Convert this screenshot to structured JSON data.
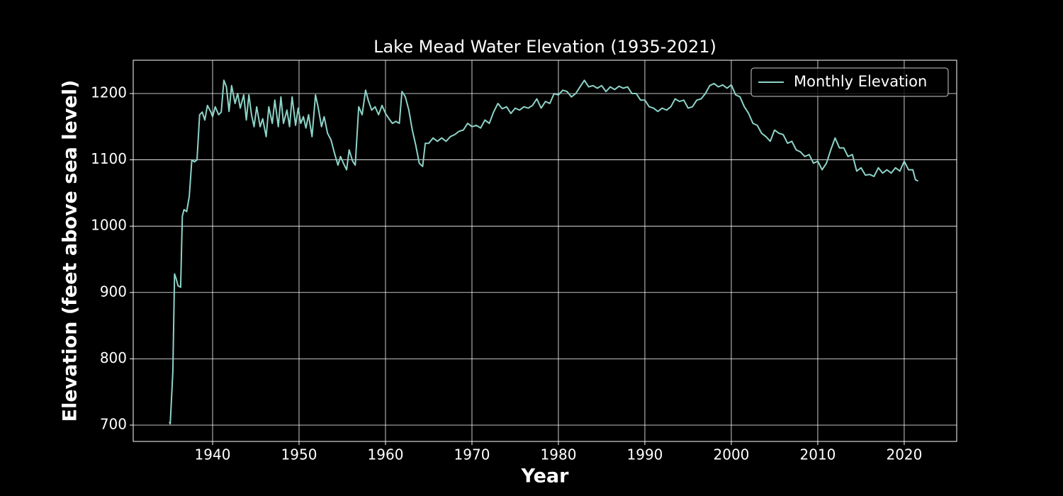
{
  "chart_data": {
    "type": "line",
    "title": "Lake Mead Water Elevation (1935-2021)",
    "xlabel": "Year",
    "ylabel": "Elevation (feet above sea level)",
    "xlim": [
      1930.82,
      2026.07
    ],
    "ylim": [
      675.4,
      1250.2
    ],
    "xticks": [
      1940,
      1950,
      1960,
      1970,
      1980,
      1990,
      2000,
      2010,
      2020
    ],
    "yticks": [
      700,
      800,
      900,
      1000,
      1100,
      1200
    ],
    "grid": true,
    "legend": "upper right",
    "x": [
      1935.0,
      1935.1,
      1935.4,
      1935.6,
      1935.8,
      1936.0,
      1936.3,
      1936.5,
      1936.7,
      1937.0,
      1937.3,
      1937.6,
      1937.9,
      1938.2,
      1938.5,
      1938.8,
      1939.1,
      1939.4,
      1939.8,
      1940.0,
      1940.3,
      1940.7,
      1941.0,
      1941.3,
      1941.6,
      1941.9,
      1942.2,
      1942.6,
      1942.9,
      1943.2,
      1943.6,
      1943.9,
      1944.2,
      1944.5,
      1944.8,
      1945.1,
      1945.5,
      1945.8,
      1946.2,
      1946.5,
      1946.9,
      1947.2,
      1947.6,
      1947.9,
      1948.2,
      1948.6,
      1948.9,
      1949.2,
      1949.6,
      1949.9,
      1950.2,
      1950.5,
      1950.8,
      1951.1,
      1951.5,
      1951.9,
      1952.2,
      1952.6,
      1952.9,
      1953.3,
      1953.7,
      1954.1,
      1954.5,
      1954.8,
      1955.2,
      1955.5,
      1955.8,
      1956.2,
      1956.5,
      1956.9,
      1957.3,
      1957.7,
      1958.0,
      1958.4,
      1958.8,
      1959.2,
      1959.6,
      1960.0,
      1960.4,
      1960.8,
      1961.2,
      1961.6,
      1961.9,
      1962.3,
      1962.7,
      1963.1,
      1963.5,
      1963.9,
      1964.3,
      1964.6,
      1965.0,
      1965.5,
      1966.0,
      1966.5,
      1967.0,
      1967.5,
      1968.0,
      1968.5,
      1969.0,
      1969.5,
      1970.0,
      1970.5,
      1971.0,
      1971.5,
      1972.0,
      1972.5,
      1973.0,
      1973.5,
      1974.0,
      1974.5,
      1975.0,
      1975.5,
      1976.0,
      1976.5,
      1977.0,
      1977.5,
      1978.0,
      1978.5,
      1979.0,
      1979.5,
      1980.0,
      1980.5,
      1981.0,
      1981.5,
      1982.0,
      1982.5,
      1983.0,
      1983.5,
      1984.0,
      1984.5,
      1985.0,
      1985.5,
      1986.0,
      1986.5,
      1987.0,
      1987.5,
      1988.0,
      1988.5,
      1989.0,
      1989.5,
      1990.0,
      1990.5,
      1991.0,
      1991.5,
      1992.0,
      1992.5,
      1993.0,
      1993.5,
      1994.0,
      1994.5,
      1995.0,
      1995.5,
      1996.0,
      1996.5,
      1997.0,
      1997.5,
      1998.0,
      1998.5,
      1999.0,
      1999.5,
      2000.0,
      2000.5,
      2001.0,
      2001.5,
      2002.0,
      2002.5,
      2003.0,
      2003.5,
      2004.0,
      2004.5,
      2005.0,
      2005.5,
      2006.0,
      2006.5,
      2007.0,
      2007.5,
      2008.0,
      2008.5,
      2009.0,
      2009.5,
      2010.0,
      2010.5,
      2011.0,
      2011.5,
      2012.0,
      2012.5,
      2013.0,
      2013.5,
      2014.0,
      2014.5,
      2015.0,
      2015.5,
      2016.0,
      2016.5,
      2017.0,
      2017.5,
      2018.0,
      2018.5,
      2019.0,
      2019.5,
      2020.0,
      2020.5,
      2021.0,
      2021.3,
      2021.6
    ],
    "series": [
      {
        "name": "Monthly Elevation",
        "color": "#8dd3c7",
        "values": [
          705,
          702,
          780,
          928,
          920,
          910,
          908,
          1015,
          1025,
          1022,
          1045,
          1100,
          1097,
          1100,
          1168,
          1172,
          1160,
          1182,
          1172,
          1165,
          1180,
          1168,
          1172,
          1220,
          1210,
          1173,
          1212,
          1185,
          1200,
          1178,
          1198,
          1160,
          1198,
          1168,
          1150,
          1180,
          1150,
          1162,
          1135,
          1180,
          1155,
          1190,
          1150,
          1195,
          1155,
          1175,
          1150,
          1195,
          1152,
          1178,
          1155,
          1165,
          1148,
          1168,
          1135,
          1198,
          1180,
          1150,
          1165,
          1140,
          1130,
          1110,
          1092,
          1105,
          1093,
          1085,
          1115,
          1098,
          1092,
          1180,
          1168,
          1205,
          1190,
          1175,
          1180,
          1168,
          1182,
          1170,
          1162,
          1155,
          1158,
          1155,
          1203,
          1195,
          1175,
          1145,
          1122,
          1095,
          1090,
          1125,
          1125,
          1133,
          1128,
          1133,
          1128,
          1135,
          1138,
          1143,
          1145,
          1155,
          1150,
          1152,
          1148,
          1160,
          1155,
          1172,
          1185,
          1177,
          1180,
          1170,
          1178,
          1175,
          1180,
          1178,
          1182,
          1192,
          1178,
          1188,
          1185,
          1200,
          1198,
          1205,
          1203,
          1195,
          1200,
          1210,
          1220,
          1210,
          1212,
          1208,
          1212,
          1203,
          1210,
          1206,
          1211,
          1208,
          1210,
          1200,
          1200,
          1190,
          1190,
          1180,
          1178,
          1173,
          1178,
          1175,
          1180,
          1192,
          1188,
          1190,
          1178,
          1180,
          1190,
          1192,
          1200,
          1212,
          1215,
          1210,
          1213,
          1208,
          1213,
          1198,
          1195,
          1180,
          1170,
          1155,
          1152,
          1140,
          1135,
          1128,
          1145,
          1140,
          1138,
          1125,
          1128,
          1115,
          1112,
          1105,
          1108,
          1095,
          1098,
          1085,
          1095,
          1115,
          1133,
          1118,
          1118,
          1105,
          1108,
          1083,
          1088,
          1077,
          1078,
          1075,
          1088,
          1080,
          1085,
          1080,
          1088,
          1083,
          1098,
          1085,
          1085,
          1070,
          1068
        ]
      }
    ]
  }
}
